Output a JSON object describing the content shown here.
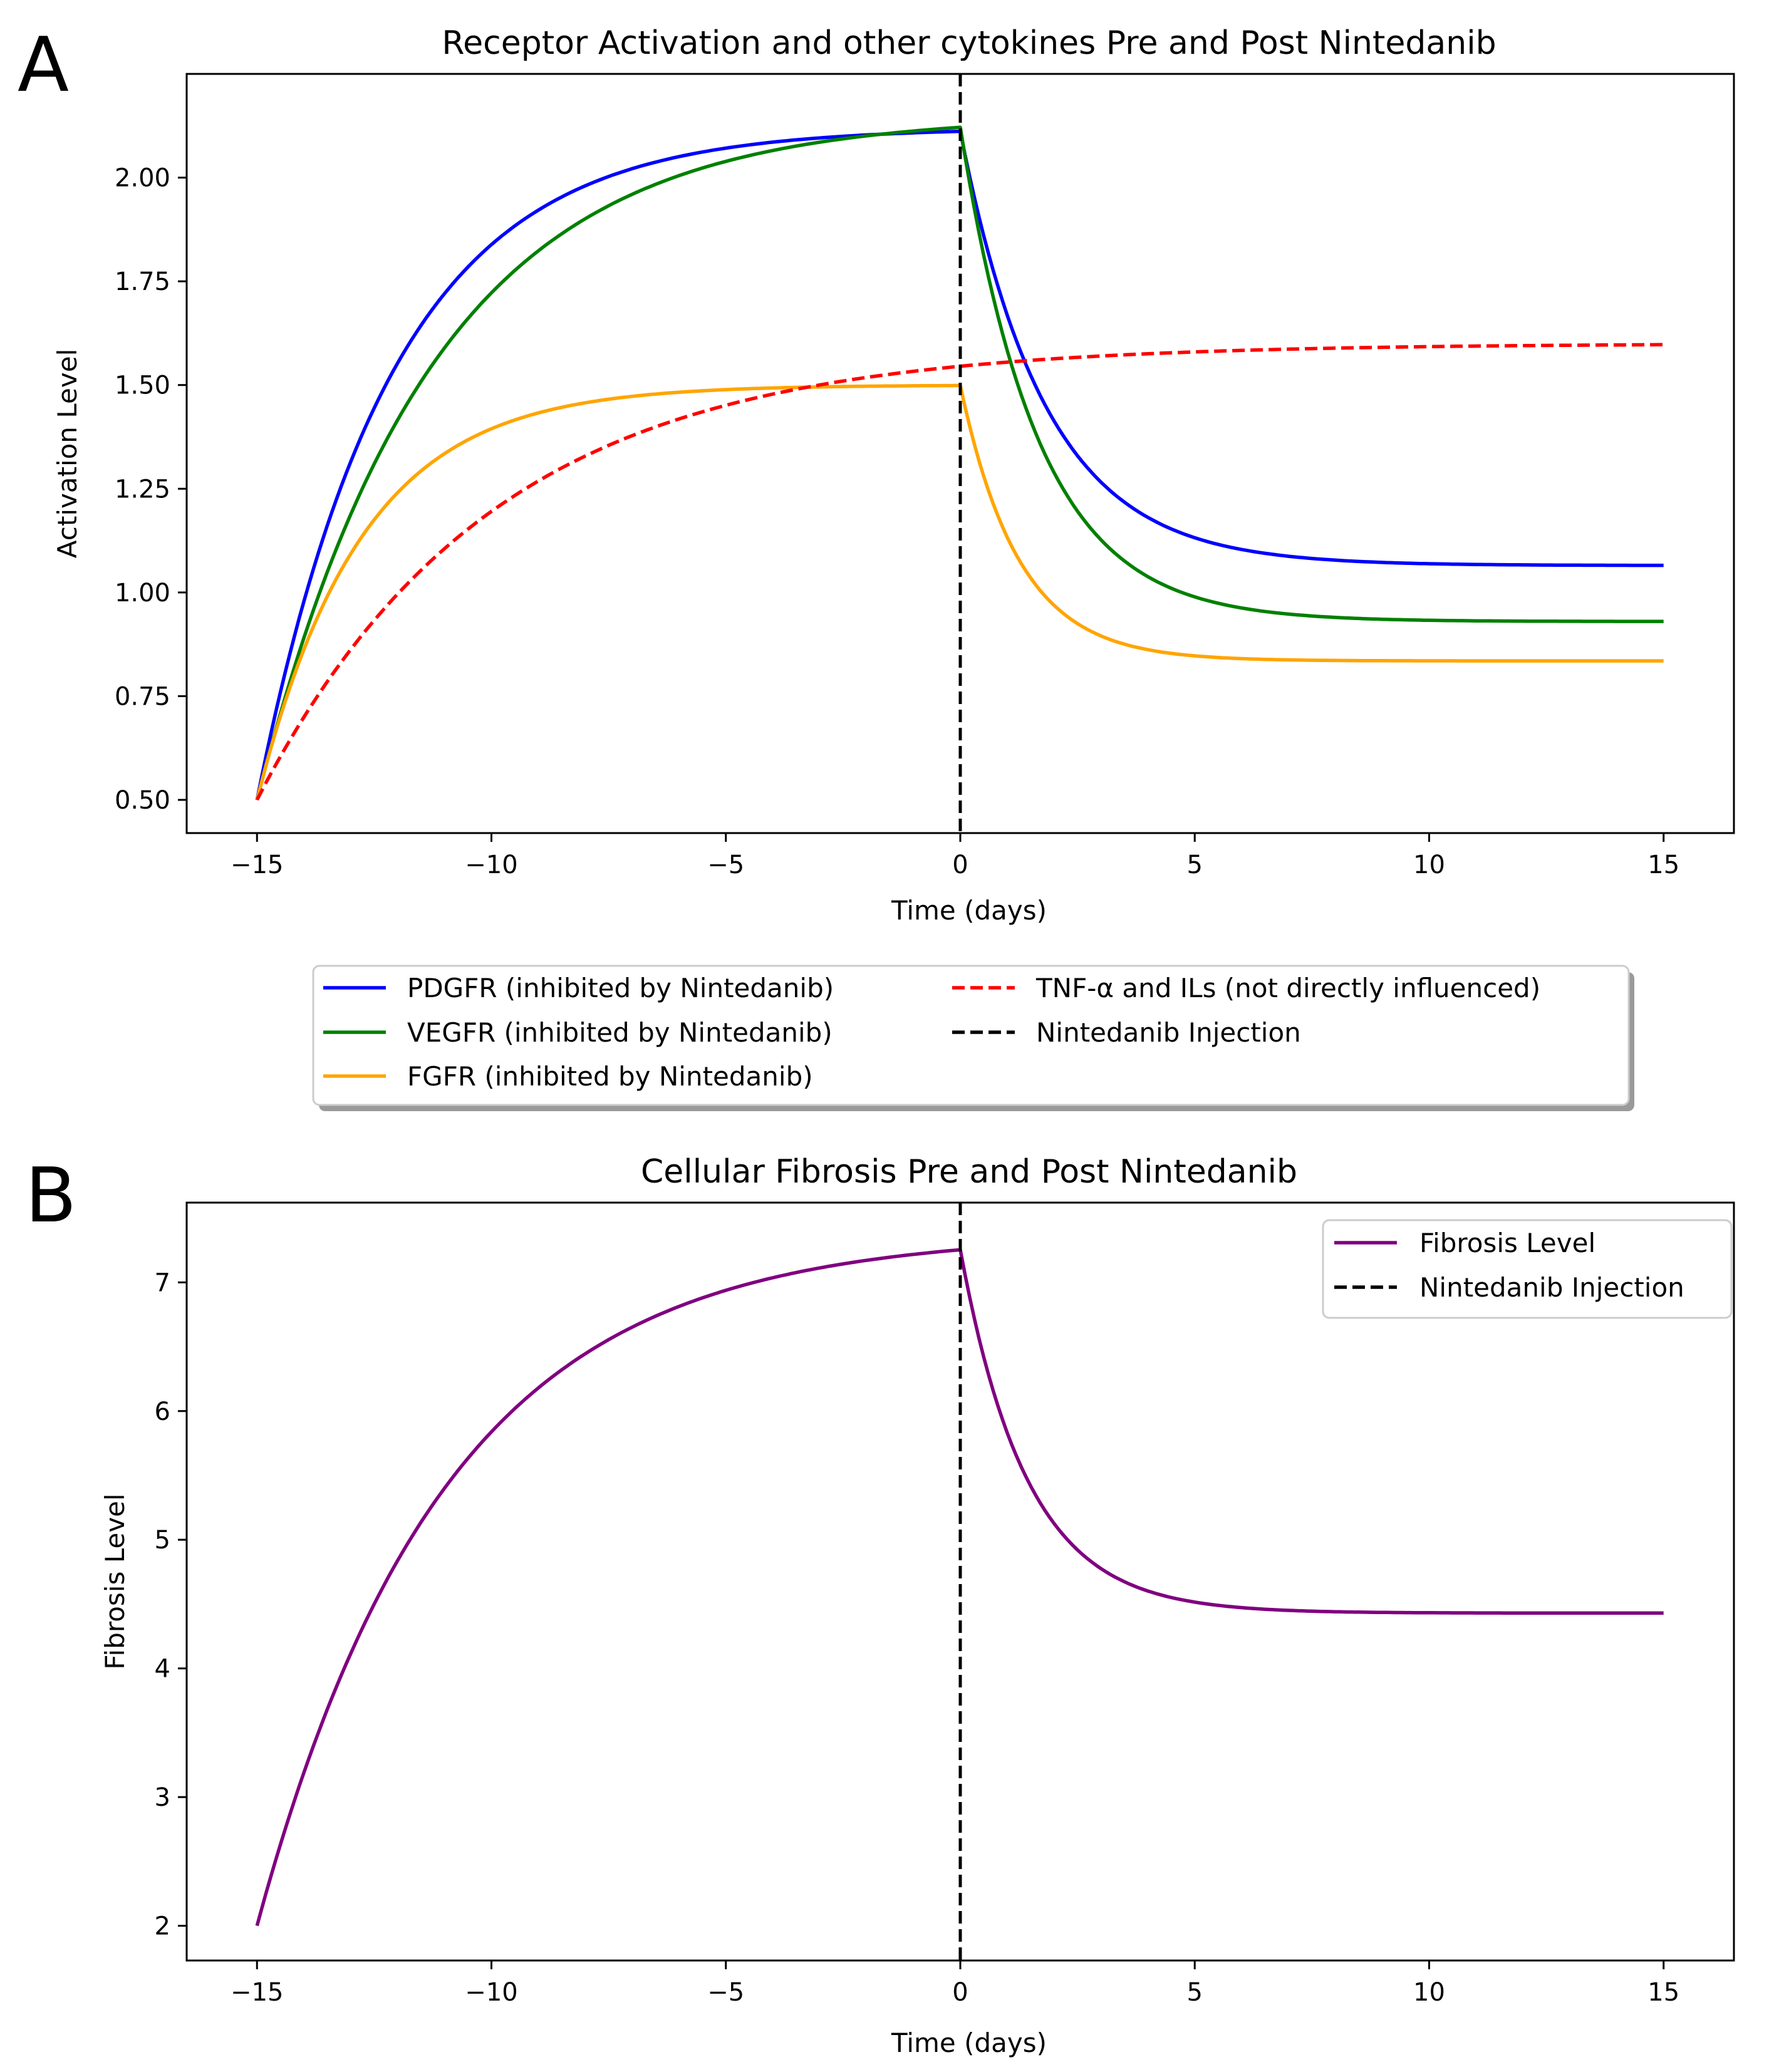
{
  "chart_data": [
    {
      "panel_label": "A",
      "type": "line",
      "title": "Receptor Activation and other cytokines Pre and Post Nintedanib",
      "xlabel": "Time (days)",
      "ylabel": "Activation Level",
      "xlim": [
        -16.5,
        16.5
      ],
      "ylim": [
        0.42,
        2.25
      ],
      "xticks": [
        -15,
        -10,
        -5,
        0,
        5,
        10,
        15
      ],
      "xtick_labels": [
        "−15",
        "−10",
        "−5",
        "0",
        "5",
        "10",
        "15"
      ],
      "yticks": [
        0.5,
        0.75,
        1.0,
        1.25,
        1.5,
        1.75,
        2.0
      ],
      "ytick_labels": [
        "0.50",
        "0.75",
        "1.00",
        "1.25",
        "1.50",
        "1.75",
        "2.00"
      ],
      "legend_position": "below",
      "series": [
        {
          "name": "PDGFR (inhibited by Nintedanib)",
          "color": "#0000ff",
          "style": "solid",
          "start": 0.5,
          "pre_plateau": 2.12,
          "pre_rate": 0.35,
          "post_plateau": 1.065,
          "post_rate": 0.55
        },
        {
          "name": "VEGFR (inhibited by Nintedanib)",
          "color": "#008000",
          "style": "solid",
          "start": 0.5,
          "pre_plateau": 2.15,
          "pre_rate": 0.27,
          "post_plateau": 0.93,
          "post_rate": 0.6
        },
        {
          "name": "FGFR (inhibited by Nintedanib)",
          "color": "#ffa500",
          "style": "solid",
          "start": 0.5,
          "pre_plateau": 1.5,
          "pre_rate": 0.45,
          "post_plateau": 0.835,
          "post_rate": 0.8
        },
        {
          "name": "TNF-α and ILs (not directly influenced)",
          "color": "#ff0000",
          "style": "dashed",
          "start": 0.5,
          "pre_plateau": 1.6,
          "pre_rate": 0.2,
          "post_plateau": 1.6,
          "post_rate": 0.2,
          "continuous": true
        }
      ],
      "vline": {
        "name": "Nintedanib Injection",
        "x": 0,
        "color": "#000000",
        "style": "dashed"
      }
    },
    {
      "panel_label": "B",
      "type": "line",
      "title": "Cellular Fibrosis Pre and Post Nintedanib",
      "xlabel": "Time (days)",
      "ylabel": "Fibrosis Level",
      "xlim": [
        -16.5,
        16.5
      ],
      "ylim": [
        1.73,
        7.62
      ],
      "xticks": [
        -15,
        -10,
        -5,
        0,
        5,
        10,
        15
      ],
      "xtick_labels": [
        "−15",
        "−10",
        "−5",
        "0",
        "5",
        "10",
        "15"
      ],
      "yticks": [
        2,
        3,
        4,
        5,
        6,
        7
      ],
      "ytick_labels": [
        "2",
        "3",
        "4",
        "5",
        "6",
        "7"
      ],
      "legend_position": "upper right",
      "series": [
        {
          "name": "Fibrosis Level",
          "color": "#800080",
          "style": "solid",
          "start": 2.0,
          "pre_plateau": 7.38,
          "pre_rate": 0.25,
          "post_plateau": 4.43,
          "post_rate": 0.7
        }
      ],
      "vline": {
        "name": "Nintedanib Injection",
        "x": 0,
        "color": "#000000",
        "style": "dashed"
      }
    }
  ]
}
